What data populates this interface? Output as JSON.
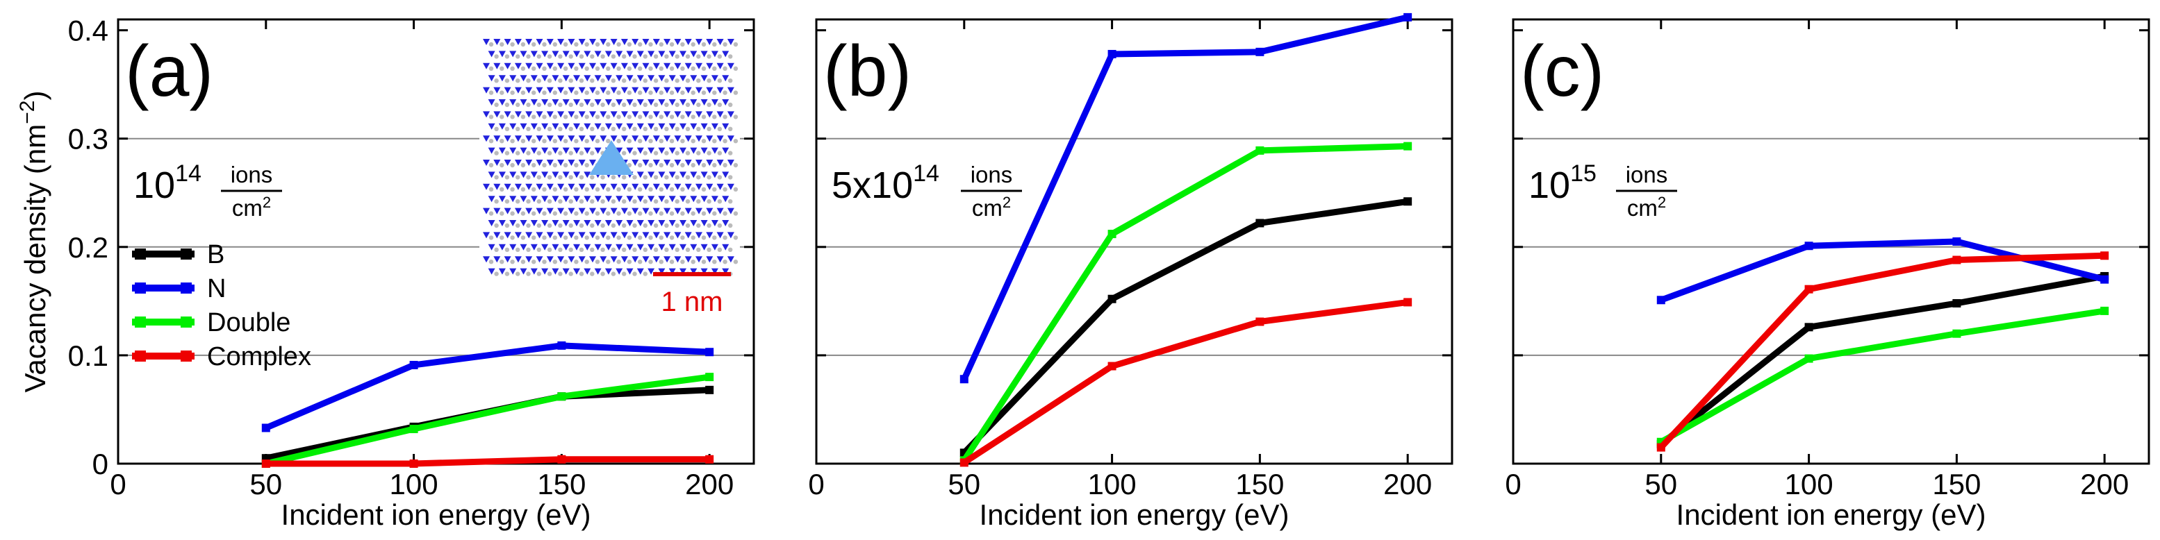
{
  "chart_data": [
    {
      "type": "line",
      "panel_label": "(a)",
      "dose": {
        "prefix": "10",
        "exponent": "14",
        "unit_top": "ions",
        "unit_bottom": "cm",
        "unit_exp": "2"
      },
      "xlabel": "Incident ion energy (eV)",
      "ylabel": "Vacancy density (nm",
      "ylabel_exp": "−2",
      "ylabel_close": ")",
      "xlim": [
        0,
        215
      ],
      "ylim": [
        0,
        0.41
      ],
      "x_ticks": [
        "0",
        "50",
        "100",
        "150",
        "200"
      ],
      "y_ticks": [
        "0",
        "0.1",
        "0.2",
        "0.3",
        "0.4"
      ],
      "x": [
        50,
        100,
        150,
        200
      ],
      "series": [
        {
          "name": "B",
          "color": "#000000",
          "values": [
            0.005,
            0.034,
            0.062,
            0.068
          ]
        },
        {
          "name": "N",
          "color": "#0000ee",
          "values": [
            0.033,
            0.091,
            0.109,
            0.103
          ]
        },
        {
          "name": "Double",
          "color": "#00ee00",
          "values": [
            0.0,
            0.032,
            0.062,
            0.08
          ]
        },
        {
          "name": "Complex",
          "color": "#ee0000",
          "values": [
            0.0,
            0.0,
            0.004,
            0.004
          ]
        }
      ],
      "legend": [
        "B",
        "N",
        "Double",
        "Complex"
      ],
      "inset_scale_label": "1 nm"
    },
    {
      "type": "line",
      "panel_label": "(b)",
      "dose": {
        "prefix": "5x10",
        "exponent": "14",
        "unit_top": "ions",
        "unit_bottom": "cm",
        "unit_exp": "2"
      },
      "xlabel": "Incident ion energy (eV)",
      "xlim": [
        0,
        215
      ],
      "ylim": [
        0,
        0.41
      ],
      "x_ticks": [
        "0",
        "50",
        "100",
        "150",
        "200"
      ],
      "x": [
        50,
        100,
        150,
        200
      ],
      "series": [
        {
          "name": "B",
          "color": "#000000",
          "values": [
            0.01,
            0.152,
            0.222,
            0.242
          ]
        },
        {
          "name": "N",
          "color": "#0000ee",
          "values": [
            0.078,
            0.378,
            0.38,
            0.412
          ]
        },
        {
          "name": "Double",
          "color": "#00ee00",
          "values": [
            0.003,
            0.212,
            0.289,
            0.293
          ]
        },
        {
          "name": "Complex",
          "color": "#ee0000",
          "values": [
            0.001,
            0.09,
            0.131,
            0.149
          ]
        }
      ]
    },
    {
      "type": "line",
      "panel_label": "(c)",
      "dose": {
        "prefix": "10",
        "exponent": "15",
        "unit_top": "ions",
        "unit_bottom": "cm",
        "unit_exp": "2"
      },
      "xlabel": "Incident ion energy (eV)",
      "xlim": [
        0,
        215
      ],
      "ylim": [
        0,
        0.41
      ],
      "x_ticks": [
        "0",
        "50",
        "100",
        "150",
        "200"
      ],
      "x": [
        50,
        100,
        150,
        200
      ],
      "series": [
        {
          "name": "B",
          "color": "#000000",
          "values": [
            0.018,
            0.126,
            0.148,
            0.173
          ]
        },
        {
          "name": "N",
          "color": "#0000ee",
          "values": [
            0.151,
            0.201,
            0.205,
            0.17
          ]
        },
        {
          "name": "Double",
          "color": "#00ee00",
          "values": [
            0.02,
            0.097,
            0.12,
            0.141
          ]
        },
        {
          "name": "Complex",
          "color": "#ee0000",
          "values": [
            0.015,
            0.161,
            0.188,
            0.192
          ]
        }
      ]
    }
  ]
}
